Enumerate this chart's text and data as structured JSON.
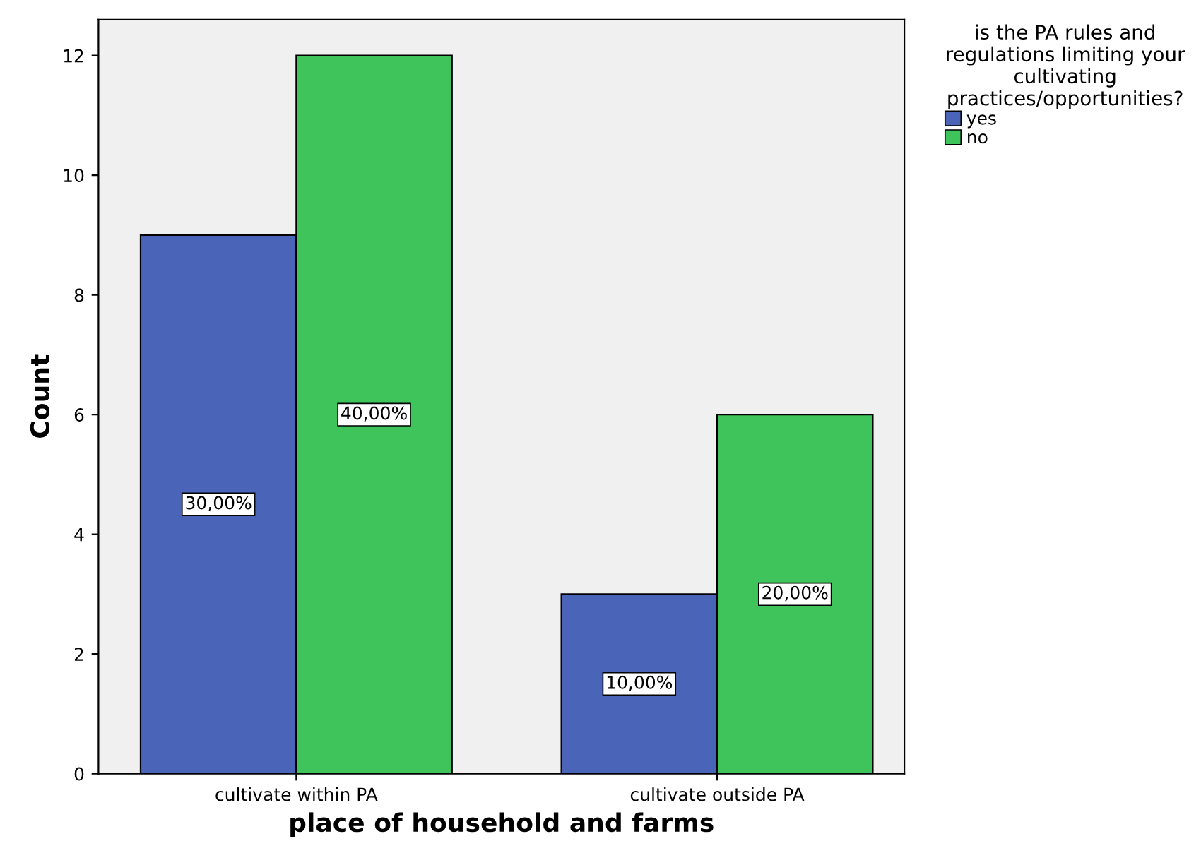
{
  "chart_data": {
    "type": "bar",
    "xlabel": "place of household and farms",
    "ylabel": "Count",
    "legend_title": "is the PA rules and\nregulations limiting your\ncultivating\npractices/opportunities?",
    "categories": [
      "cultivate within PA",
      "cultivate outside PA"
    ],
    "series": [
      {
        "name": "yes",
        "color": "#4a64b8",
        "values": [
          9,
          3
        ]
      },
      {
        "name": "no",
        "color": "#3ec45a",
        "values": [
          12,
          6
        ]
      }
    ],
    "annotations": [
      {
        "text": "30,00%",
        "x": "cultivate within PA",
        "y": 4.5
      },
      {
        "text": "40,00%",
        "x": "cultivate within PA",
        "y": 6
      },
      {
        "text": "10,00%",
        "x": "cultivate outside PA",
        "y": 1.5
      },
      {
        "text": "20,00%",
        "x": "cultivate outside PA",
        "y": 3
      }
    ],
    "ylim": [
      0,
      12.6
    ],
    "yticks": [
      0,
      2,
      4,
      6,
      8,
      10,
      12
    ],
    "grid": false,
    "legend": "top right"
  }
}
